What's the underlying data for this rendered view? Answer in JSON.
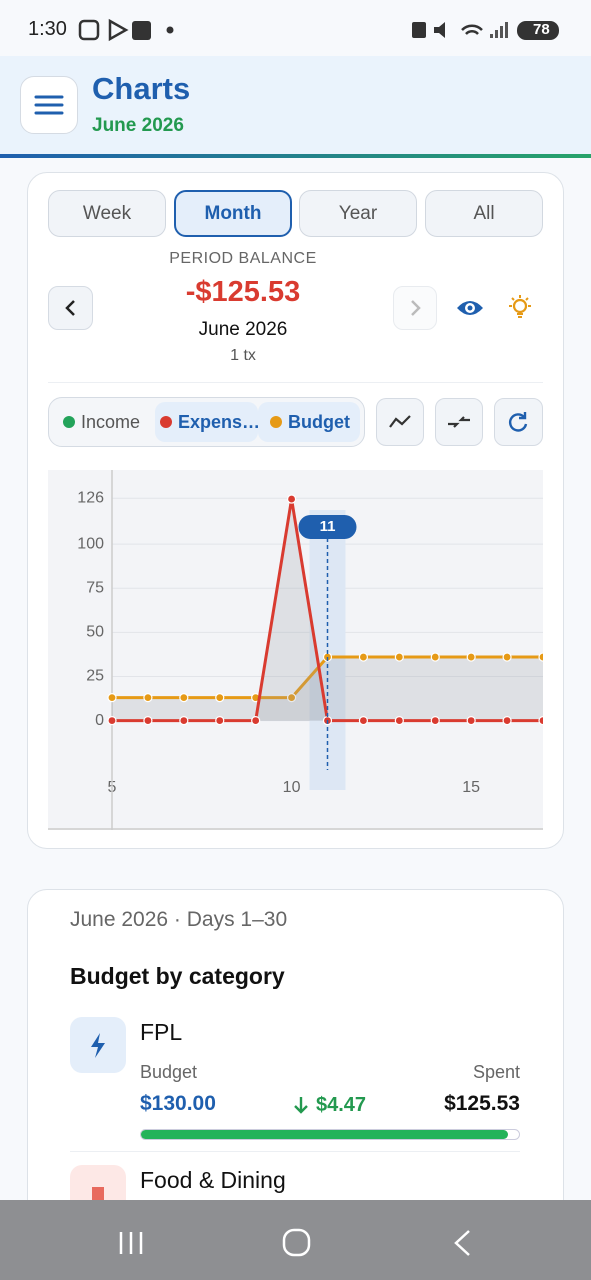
{
  "status": {
    "time": "1:30",
    "battery": "78"
  },
  "header": {
    "title": "Charts",
    "subtitle": "June 2026"
  },
  "tabs": [
    "Week",
    "Month",
    "Year",
    "All"
  ],
  "balance": {
    "label": "PERIOD BALANCE",
    "amount": "-$125.53",
    "period": "June 2026",
    "count": "1 tx"
  },
  "toggles": [
    "Income",
    "Expens…",
    "Budget"
  ],
  "chart": {
    "type": "line",
    "x": [
      5,
      6,
      7,
      8,
      9,
      10,
      11,
      12,
      13,
      14,
      15,
      16,
      17
    ],
    "series": [
      {
        "color": "#e69a16",
        "values": [
          13,
          13,
          13,
          13,
          13,
          13,
          36,
          36,
          36,
          36,
          36,
          36,
          36
        ]
      },
      {
        "color": "#d93b30",
        "values": [
          0,
          0,
          0,
          0,
          0,
          125.53,
          0,
          0,
          0,
          0,
          0,
          0,
          0
        ]
      }
    ],
    "xlim": [
      5,
      17
    ],
    "ylim": [
      -28,
      142
    ],
    "xticks": [
      5,
      10,
      15
    ],
    "yticks": [
      0,
      25,
      50,
      75,
      100,
      126
    ],
    "grid": true,
    "selected_x": 11
  },
  "budget": {
    "period": "June 2026 · Days 1–30",
    "heading": "Budget by category",
    "items": [
      {
        "name": "FPL",
        "budget_label": "Budget",
        "spent_label": "Spent",
        "budget": "$130.00",
        "remaining": "$4.47",
        "spent": "$125.53",
        "progress_percent": 97
      },
      {
        "name": "Food & Dining"
      }
    ]
  }
}
